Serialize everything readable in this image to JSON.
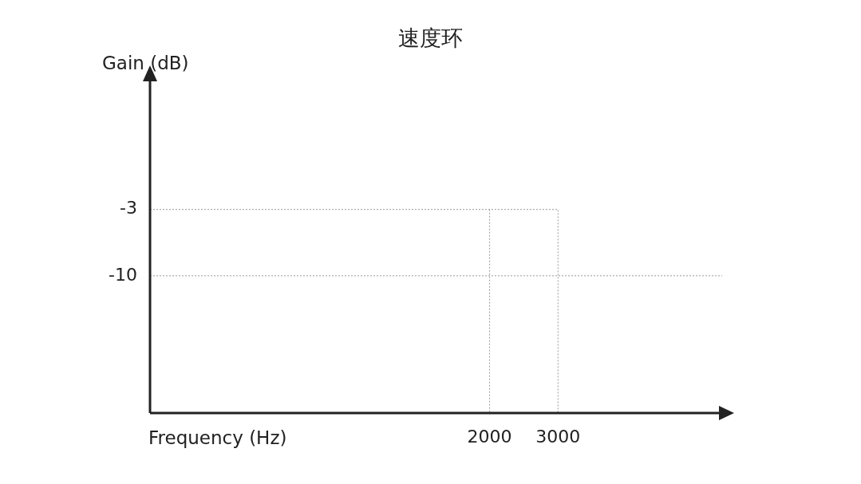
{
  "chart_data": {
    "type": "line",
    "title": "速度环",
    "xlabel": "Frequency (Hz)",
    "ylabel": "Gain (dB)",
    "xlim": [
      -2965,
      5400
    ],
    "xticks": [
      2000,
      3000
    ],
    "ylim": [
      -24.5,
      10.7
    ],
    "yticks": [
      -3,
      -10
    ],
    "line_style": "dotted",
    "marker": "none",
    "series": [
      {
        "color": "#9a9a9a",
        "x": [
          -2965,
          3000,
          3000
        ],
        "values": [
          -3,
          -3,
          -24.5
        ]
      },
      {
        "color": "#9a9a9a",
        "x": [
          2000,
          2000
        ],
        "values": [
          -3,
          -24.5
        ]
      }
    ],
    "ref_lines": [
      {
        "axis": "y",
        "value": -10,
        "color": "#9a9a9a",
        "line_style": "dotted"
      }
    ]
  }
}
